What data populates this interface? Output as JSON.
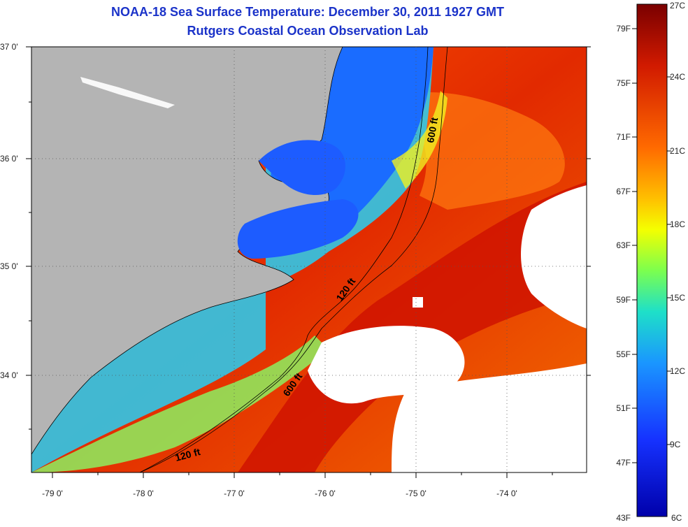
{
  "header": {
    "title": "NOAA-18 Sea Surface Temperature:  December 30, 2011 1927 GMT",
    "subtitle": "Rutgers Coastal Ocean Observation Lab"
  },
  "map": {
    "lat_labels": [
      "37 0'",
      "36 0'",
      "35 0'",
      "34 0'"
    ],
    "lon_labels": [
      "-79 0'",
      "-78 0'",
      "-77 0'",
      "-76 0'",
      "-75 0'",
      "-74 0'"
    ],
    "contours": {
      "c120_upper": "120 ft",
      "c120_lower": "120 ft",
      "c600_upper": "600 ft",
      "c600_lower": "600 ft"
    },
    "colors": {
      "land": "#b4b4b4",
      "clouds": "#ffffff"
    }
  },
  "colorbar": {
    "fahrenheit": [
      "79F",
      "75F",
      "71F",
      "67F",
      "63F",
      "59F",
      "55F",
      "51F",
      "47F",
      "43F"
    ],
    "celsius": [
      "27C",
      "24C",
      "21C",
      "18C",
      "15C",
      "12C",
      "9C",
      "6C"
    ],
    "gradient": [
      "#7a0000",
      "#d11a00",
      "#ff6a00",
      "#ffc000",
      "#f4ff00",
      "#7cff4e",
      "#1ee0c8",
      "#1a96ff",
      "#1632ff",
      "#0000aa"
    ]
  }
}
